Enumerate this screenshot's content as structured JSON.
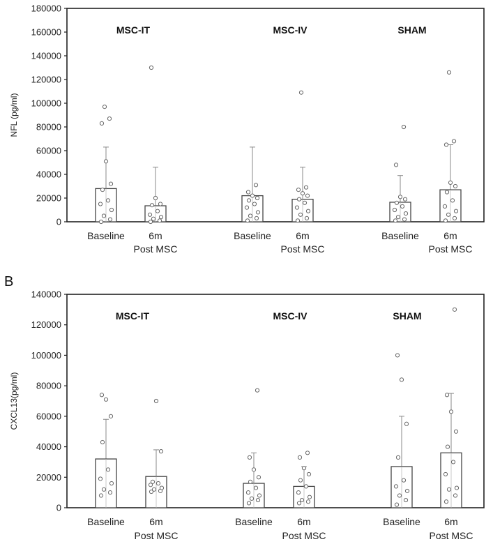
{
  "chart_data": [
    {
      "type": "bar",
      "panel_label": "",
      "ylabel": "NFL (pg/ml)",
      "ylim": [
        0,
        180000
      ],
      "yticks": [
        "0",
        "20000",
        "40000",
        "60000",
        "80000",
        "100000",
        "120000",
        "140000",
        "160000",
        "180000"
      ],
      "ytick_values": [
        0,
        20000,
        40000,
        60000,
        80000,
        100000,
        120000,
        140000,
        160000,
        180000
      ],
      "groups": [
        {
          "name": "MSC-IT",
          "bars": [
            {
              "label1": "Baseline",
              "label2": "",
              "mean": 28000,
              "err_top": 63000,
              "points": [
                0,
                2000,
                5000,
                10000,
                15000,
                18000,
                27000,
                32000,
                51000,
                83000,
                87000,
                97000
              ]
            },
            {
              "label1": "6m",
              "label2": "Post MSC",
              "mean": 13500,
              "err_top": 46000,
              "points": [
                0,
                1000,
                2500,
                4000,
                6000,
                9000,
                14000,
                15000,
                20000,
                130000
              ]
            }
          ]
        },
        {
          "name": "MSC-IV",
          "bars": [
            {
              "label1": "Baseline",
              "label2": "",
              "mean": 22000,
              "err_top": 63000,
              "points": [
                1000,
                3000,
                5000,
                8000,
                12000,
                15000,
                18000,
                20000,
                22000,
                25000,
                31000
              ]
            },
            {
              "label1": "6m",
              "label2": "Post MSC",
              "mean": 19000,
              "err_top": 46000,
              "points": [
                1000,
                3000,
                6000,
                9000,
                12000,
                16000,
                19000,
                22000,
                24000,
                27000,
                29000,
                109000
              ]
            }
          ]
        },
        {
          "name": "SHAM",
          "bars": [
            {
              "label1": "Baseline",
              "label2": "",
              "mean": 16500,
              "err_top": 39000,
              "points": [
                1000,
                2000,
                4000,
                7000,
                10000,
                13000,
                16000,
                19000,
                21000,
                48000,
                80000
              ]
            },
            {
              "label1": "6m",
              "label2": "Post MSC",
              "mean": 27000,
              "err_top": 65000,
              "points": [
                1000,
                3000,
                6000,
                9000,
                13000,
                18000,
                25000,
                30000,
                33000,
                65000,
                68000,
                126000
              ]
            }
          ]
        }
      ]
    },
    {
      "type": "bar",
      "panel_label": "B",
      "ylabel": "CXCL13(pg/ml)",
      "ylim": [
        0,
        140000
      ],
      "yticks": [
        "0",
        "20000",
        "40000",
        "60000",
        "80000",
        "100000",
        "120000",
        "140000"
      ],
      "ytick_values": [
        0,
        20000,
        40000,
        60000,
        80000,
        100000,
        120000,
        140000
      ],
      "groups": [
        {
          "name": "MSC-IT",
          "bars": [
            {
              "label1": "Baseline",
              "label2": "",
              "mean": 32000,
              "err_top": 58000,
              "points": [
                8000,
                10000,
                12000,
                16000,
                19000,
                25000,
                43000,
                60000,
                71000,
                74000
              ]
            },
            {
              "label1": "6m",
              "label2": "Post MSC",
              "mean": 20500,
              "err_top": 38000,
              "points": [
                10500,
                11000,
                12000,
                13000,
                15000,
                16000,
                17000,
                37000,
                70000
              ]
            }
          ]
        },
        {
          "name": "MSC-IV",
          "bars": [
            {
              "label1": "Baseline",
              "label2": "",
              "mean": 16000,
              "err_top": 36000,
              "points": [
                3000,
                5000,
                6000,
                8000,
                10000,
                13000,
                17000,
                20000,
                25000,
                33000,
                77000
              ]
            },
            {
              "label1": "6m",
              "label2": "Post MSC",
              "mean": 14000,
              "err_top": 27000,
              "points": [
                3000,
                4000,
                5000,
                7000,
                10000,
                14000,
                18000,
                22000,
                26000,
                33000,
                36000
              ]
            }
          ]
        },
        {
          "name": "SHAM",
          "bars": [
            {
              "label1": "Baseline",
              "label2": "",
              "mean": 27000,
              "err_top": 60000,
              "points": [
                2000,
                5000,
                8000,
                11000,
                14000,
                18000,
                33000,
                55000,
                84000,
                100000
              ]
            },
            {
              "label1": "6m",
              "label2": "Post MSC",
              "mean": 36000,
              "err_top": 75000,
              "points": [
                4000,
                8000,
                12000,
                13000,
                22000,
                30000,
                40000,
                50000,
                63000,
                74000,
                130000
              ]
            }
          ]
        }
      ]
    }
  ]
}
